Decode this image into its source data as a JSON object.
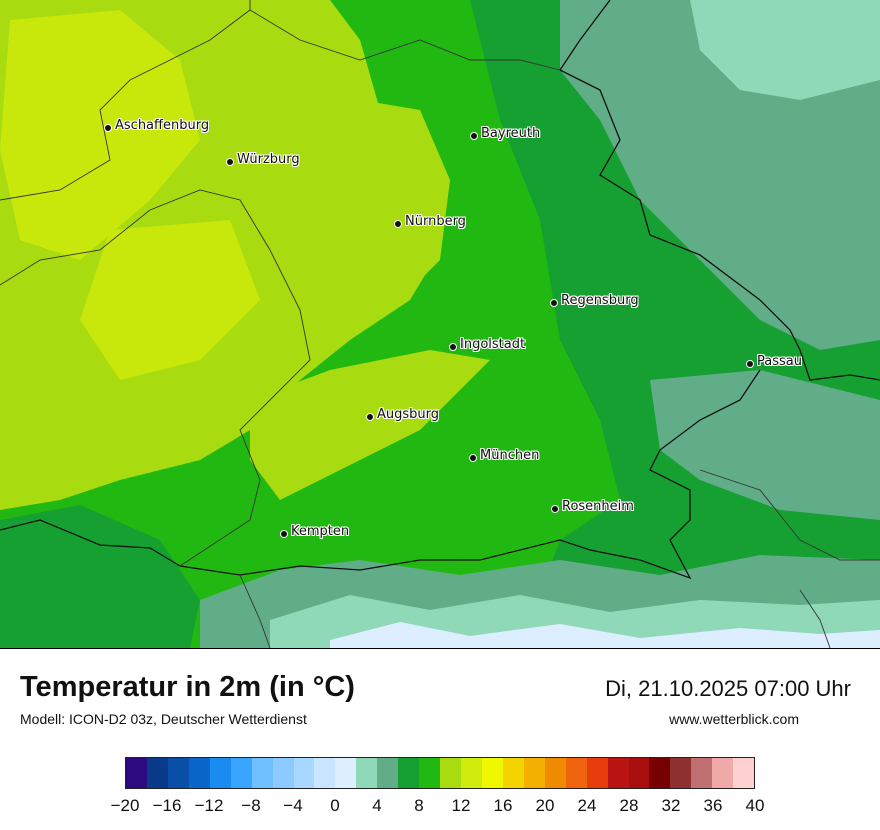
{
  "title": "Temperatur in 2m (in °C)",
  "model": "Modell: ICON-D2 03z, Deutscher Wetterdienst",
  "datetime": "Di, 21.10.2025 07:00 Uhr",
  "website": "www.wetterblick.com",
  "cities": [
    {
      "name": "Aschaffenburg"
    },
    {
      "name": "Würzburg"
    },
    {
      "name": "Bayreuth"
    },
    {
      "name": "Nürnberg"
    },
    {
      "name": "Regensburg"
    },
    {
      "name": "Ingolstadt"
    },
    {
      "name": "Passau"
    },
    {
      "name": "Augsburg"
    },
    {
      "name": "München"
    },
    {
      "name": "Rosenheim"
    },
    {
      "name": "Kempten"
    }
  ],
  "legend": {
    "ticks": [
      "−20",
      "−16",
      "−12",
      "−8",
      "−4",
      "0",
      "4",
      "8",
      "12",
      "16",
      "20",
      "24",
      "28",
      "32",
      "36",
      "40"
    ],
    "colors": [
      "#2e0a80",
      "#0a3b8a",
      "#0a4ea8",
      "#0a66c8",
      "#1a8cf0",
      "#3aa5ff",
      "#70bfff",
      "#8ccaff",
      "#a8d8ff",
      "#c8e6ff",
      "#dceeff",
      "#8fd9b8",
      "#60ad88",
      "#16a032",
      "#22b812",
      "#a8dc10",
      "#d0ec0c",
      "#f0f800",
      "#f4d400",
      "#f4b000",
      "#f08a00",
      "#f06410",
      "#e83c0c",
      "#b81414",
      "#a80e0e",
      "#780000",
      "#8c3030",
      "#c07070",
      "#f0a8a8",
      "#ffd0d0"
    ]
  }
}
